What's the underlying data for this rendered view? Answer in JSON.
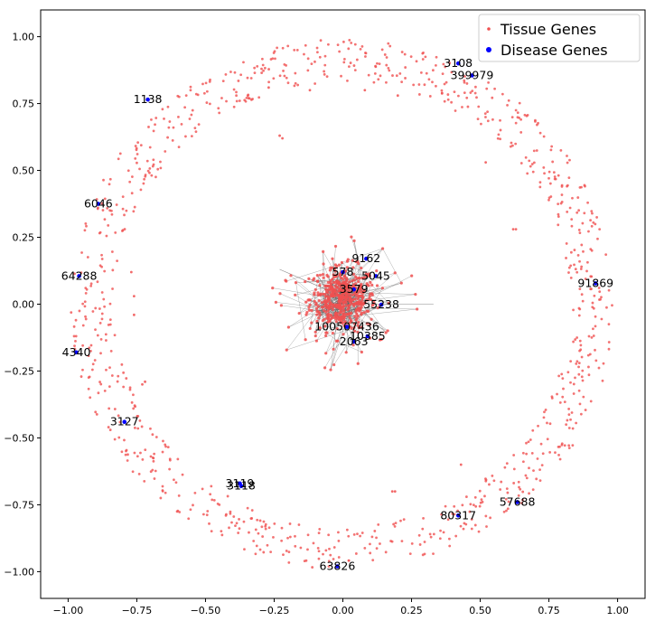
{
  "chart_data": {
    "type": "scatter",
    "xlim": [
      -1.1,
      1.1
    ],
    "ylim": [
      -1.1,
      1.1
    ],
    "xticks": [
      -1.0,
      -0.75,
      -0.5,
      -0.25,
      0.0,
      0.25,
      0.5,
      0.75,
      1.0
    ],
    "xtick_labels": [
      "−1.00",
      "−0.75",
      "−0.50",
      "−0.25",
      "0.00",
      "0.25",
      "0.50",
      "0.75",
      "1.00"
    ],
    "yticks": [
      1.0,
      0.75,
      0.5,
      0.25,
      0.0,
      -0.25,
      -0.5,
      -0.75,
      -1.0
    ],
    "ytick_labels": [
      "1.00",
      "0.75",
      "0.50",
      "0.25",
      "0.00",
      "−0.25",
      "−0.50",
      "−0.75",
      "−1.00"
    ],
    "grid": false,
    "legend_position": "top-right",
    "series": [
      {
        "name": "Tissue Genes",
        "color": "#f05050",
        "marker": "small-dot"
      },
      {
        "name": "Disease Genes",
        "color": "#0000ff",
        "marker": "dot"
      }
    ],
    "tissue_ring": {
      "inner_radius": 0.83,
      "outer_radius": 0.99,
      "approx_points": 900
    },
    "tissue_cluster": {
      "center": [
        0.0,
        0.02
      ],
      "spread": 0.08,
      "approx_points": 500
    },
    "disease_genes": [
      {
        "label": "3108",
        "x": 0.42,
        "y": 0.9
      },
      {
        "label": "399979",
        "x": 0.47,
        "y": 0.855
      },
      {
        "label": "1138",
        "x": -0.71,
        "y": 0.765
      },
      {
        "label": "6046",
        "x": -0.89,
        "y": 0.375
      },
      {
        "label": "64288",
        "x": -0.96,
        "y": 0.105
      },
      {
        "label": "4340",
        "x": -0.97,
        "y": -0.18
      },
      {
        "label": "3127",
        "x": -0.795,
        "y": -0.44
      },
      {
        "label": "3119",
        "x": -0.375,
        "y": -0.67
      },
      {
        "label": "3118",
        "x": -0.37,
        "y": -0.68
      },
      {
        "label": "63826",
        "x": -0.02,
        "y": -0.98
      },
      {
        "label": "80317",
        "x": 0.42,
        "y": -0.79
      },
      {
        "label": "57688",
        "x": 0.635,
        "y": -0.74
      },
      {
        "label": "91869",
        "x": 0.92,
        "y": 0.078
      },
      {
        "label": "9162",
        "x": 0.085,
        "y": 0.17
      },
      {
        "label": "578",
        "x": 0.0,
        "y": 0.12
      },
      {
        "label": "5045",
        "x": 0.12,
        "y": 0.105
      },
      {
        "label": "3579",
        "x": 0.04,
        "y": 0.055
      },
      {
        "label": "55238",
        "x": 0.14,
        "y": -0.002
      },
      {
        "label": "100507436",
        "x": 0.015,
        "y": -0.085
      },
      {
        "label": "10385",
        "x": 0.09,
        "y": -0.12
      },
      {
        "label": "2063",
        "x": 0.04,
        "y": -0.14
      }
    ]
  }
}
